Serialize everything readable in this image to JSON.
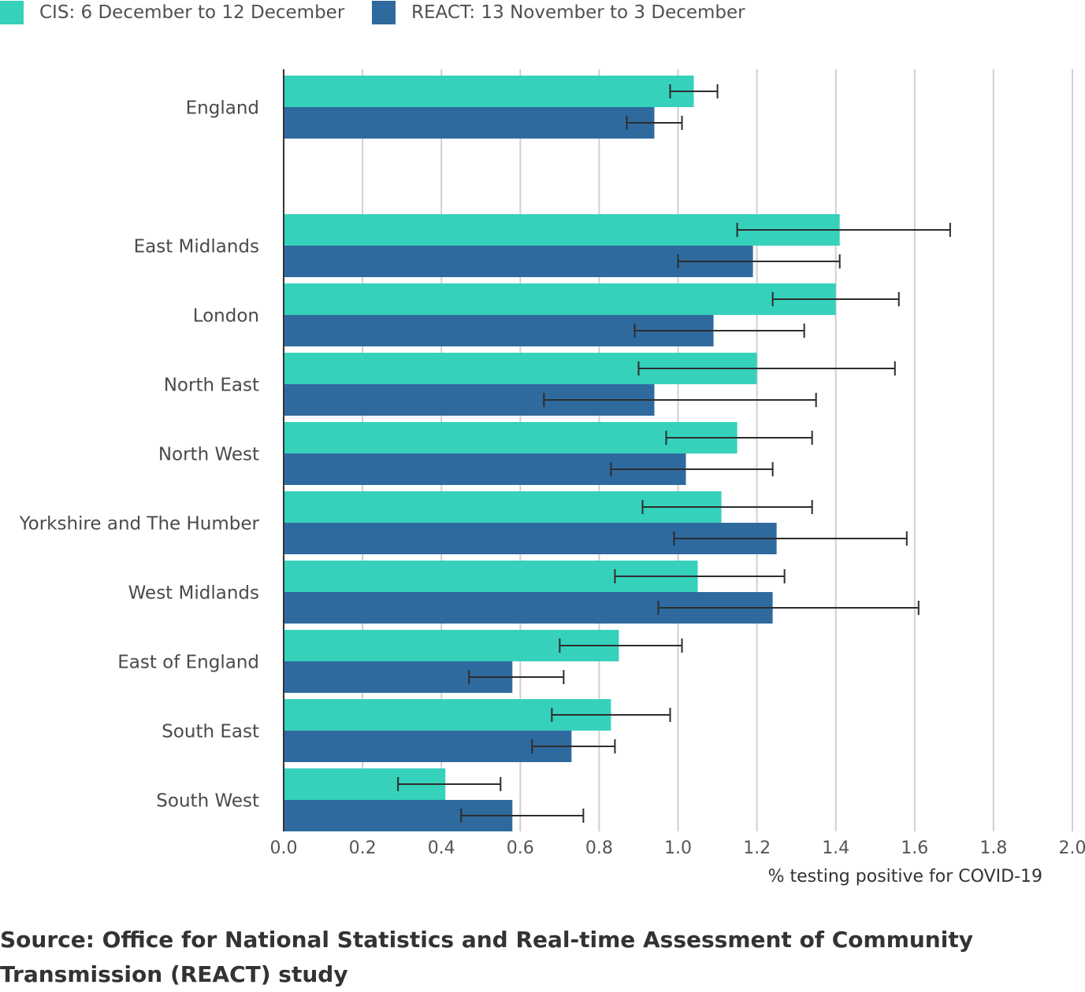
{
  "legend": [
    {
      "label": "CIS: 6 December to 12 December",
      "color": "#36d1bb"
    },
    {
      "label": "REACT: 13 November to 3 December",
      "color": "#2f6a9e"
    }
  ],
  "source": "Source: Office for National Statistics and Real-time Assessment of Community Transmission (REACT) study",
  "chart_data": {
    "type": "bar",
    "orientation": "horizontal",
    "xlabel": "% testing positive for COVID-19",
    "xlim": [
      0,
      2.0
    ],
    "xticks": [
      "0.0",
      "0.2",
      "0.4",
      "0.6",
      "0.8",
      "1.0",
      "1.2",
      "1.4",
      "1.6",
      "1.8",
      "2.0"
    ],
    "grid": true,
    "legend_position": "top-left",
    "categories": [
      "England",
      "East Midlands",
      "London",
      "North East",
      "North West",
      "Yorkshire and The Humber",
      "West Midlands",
      "East of England",
      "South East",
      "South West"
    ],
    "series": [
      {
        "name": "CIS: 6 December to 12 December",
        "color": "#36d1bb",
        "values": [
          1.04,
          1.41,
          1.4,
          1.2,
          1.15,
          1.11,
          1.05,
          0.85,
          0.83,
          0.41
        ],
        "ci_low": [
          0.98,
          1.15,
          1.24,
          0.9,
          0.97,
          0.91,
          0.84,
          0.7,
          0.68,
          0.29
        ],
        "ci_high": [
          1.1,
          1.69,
          1.56,
          1.55,
          1.34,
          1.34,
          1.27,
          1.01,
          0.98,
          0.55
        ]
      },
      {
        "name": "REACT: 13 November to 3 December",
        "color": "#2f6a9e",
        "values": [
          0.94,
          1.19,
          1.09,
          0.94,
          1.02,
          1.25,
          1.24,
          0.58,
          0.73,
          0.58
        ],
        "ci_low": [
          0.87,
          1.0,
          0.89,
          0.66,
          0.83,
          0.99,
          0.95,
          0.47,
          0.63,
          0.45
        ],
        "ci_high": [
          1.01,
          1.41,
          1.32,
          1.35,
          1.24,
          1.58,
          1.61,
          0.71,
          0.84,
          0.76
        ]
      }
    ]
  }
}
